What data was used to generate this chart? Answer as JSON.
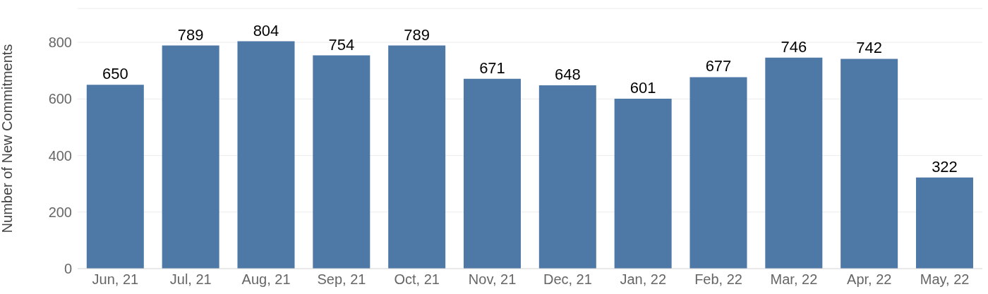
{
  "chart_data": {
    "type": "bar",
    "ylabel": "Number of New Commitments",
    "categories": [
      "Jun, 21",
      "Jul, 21",
      "Aug, 21",
      "Sep, 21",
      "Oct, 21",
      "Nov, 21",
      "Dec, 21",
      "Jan, 22",
      "Feb, 22",
      "Mar, 22",
      "Apr, 22",
      "May, 22"
    ],
    "values": [
      650,
      789,
      804,
      754,
      789,
      671,
      648,
      601,
      677,
      746,
      742,
      322
    ],
    "color": "#4e79a7",
    "ylim": [
      0,
      920
    ],
    "yticks": [
      0,
      200,
      400,
      600,
      800
    ],
    "grid": "y",
    "data_labels": true
  }
}
